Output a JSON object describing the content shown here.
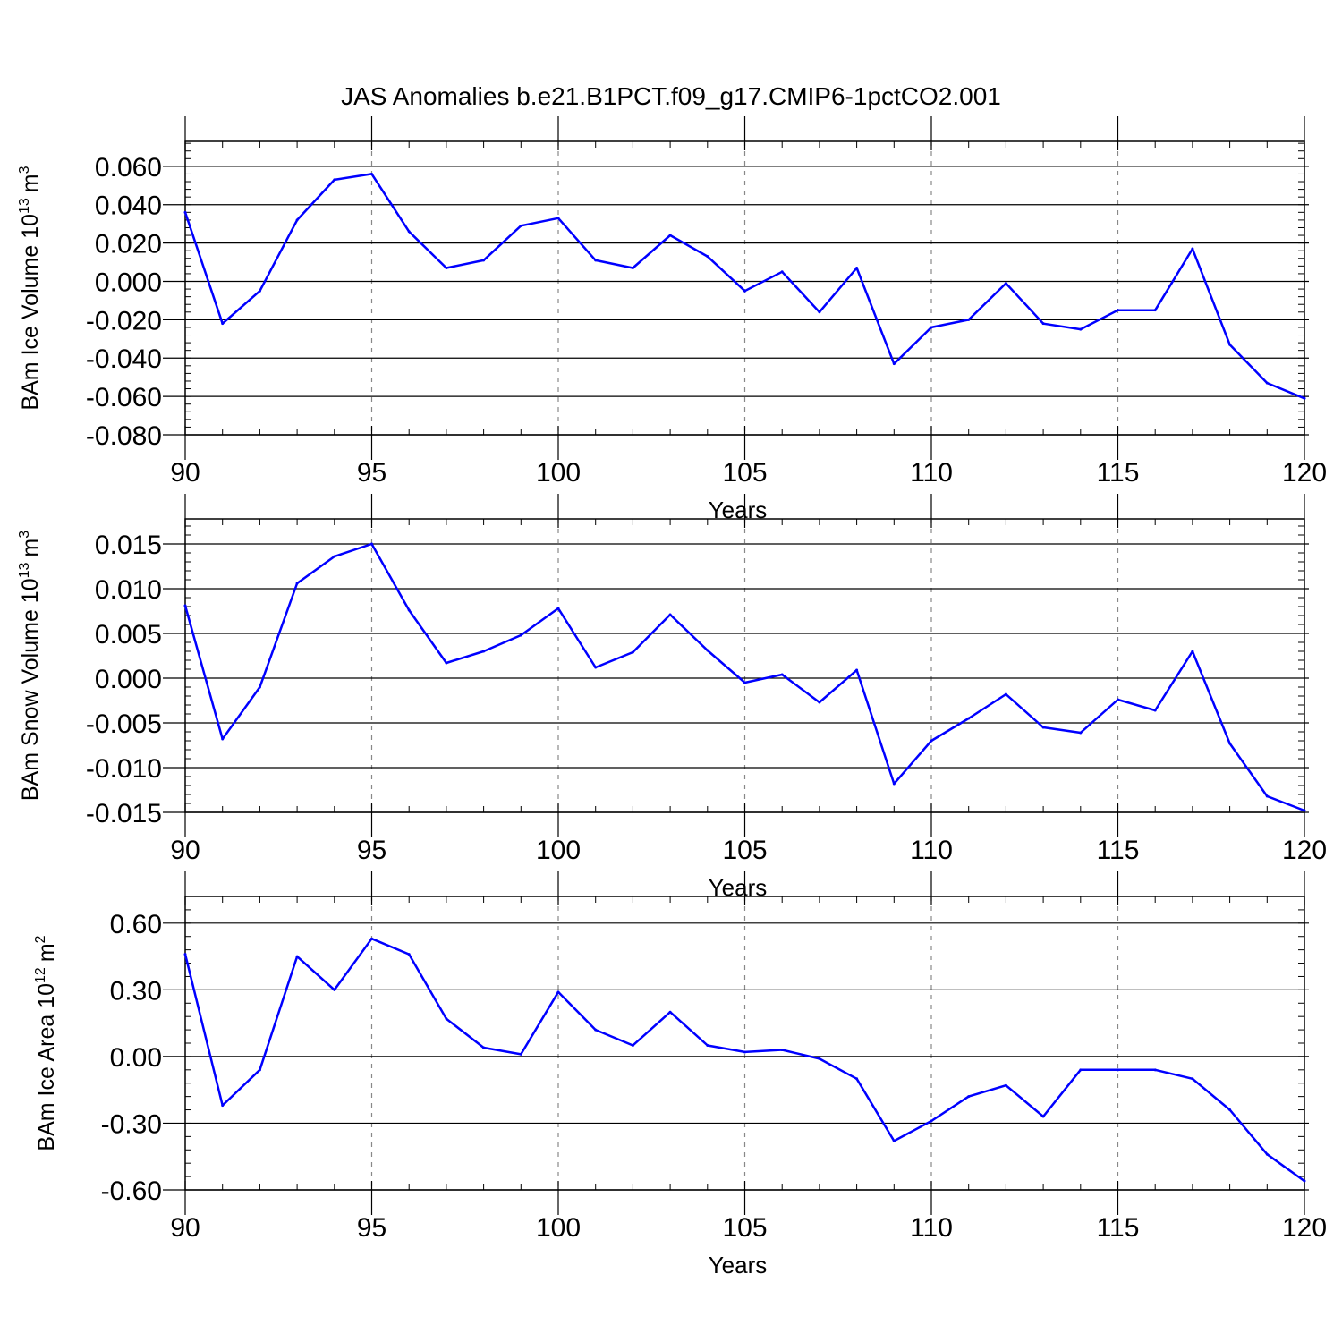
{
  "page": {
    "title": "JAS Anomalies b.e21.B1PCT.f09_g17.CMIP6-1pctCO2.001"
  },
  "colors": {
    "series_line": "#0000ff",
    "axis": "#000000",
    "gridline": "#888888"
  },
  "chart_data": [
    {
      "type": "line",
      "ylabel_main": "BAm Ice Volume 10",
      "ylabel_exp": "13",
      "ylabel_unit": "m",
      "ylabel_unit_exp": "3",
      "xlabel": "Years",
      "xlim": [
        90,
        120
      ],
      "ylim": [
        -0.08,
        0.073
      ],
      "x_ticks": [
        "90",
        "95",
        "100",
        "105",
        "110",
        "115",
        "120"
      ],
      "y_ticks": [
        "0.060",
        "0.040",
        "0.020",
        "0.000",
        "-0.020",
        "-0.040",
        "-0.060",
        "-0.080"
      ],
      "y_tick_values": [
        0.06,
        0.04,
        0.02,
        0.0,
        -0.02,
        -0.04,
        -0.06,
        -0.08
      ],
      "grid": "vertical dashed at major x ticks",
      "x": [
        90,
        91,
        92,
        93,
        94,
        95,
        96,
        97,
        98,
        99,
        100,
        101,
        102,
        103,
        104,
        105,
        106,
        107,
        108,
        109,
        110,
        111,
        112,
        113,
        114,
        115,
        116,
        117,
        118,
        119,
        120
      ],
      "values": [
        0.036,
        -0.022,
        -0.005,
        0.032,
        0.053,
        0.056,
        0.026,
        0.007,
        0.011,
        0.029,
        0.033,
        0.011,
        0.007,
        0.024,
        0.013,
        -0.005,
        0.005,
        -0.016,
        0.007,
        -0.043,
        -0.024,
        -0.02,
        -0.001,
        -0.022,
        -0.025,
        -0.015,
        -0.015,
        0.017,
        -0.033,
        -0.053,
        -0.061
      ]
    },
    {
      "type": "line",
      "ylabel_main": "BAm Snow Volume 10",
      "ylabel_exp": "13",
      "ylabel_unit": "m",
      "ylabel_unit_exp": "3",
      "xlabel": "Years",
      "xlim": [
        90,
        120
      ],
      "ylim": [
        -0.015,
        0.0178
      ],
      "x_ticks": [
        "90",
        "95",
        "100",
        "105",
        "110",
        "115",
        "120"
      ],
      "y_ticks": [
        "0.015",
        "0.010",
        "0.005",
        "0.000",
        "-0.005",
        "-0.010",
        "-0.015"
      ],
      "y_tick_values": [
        0.015,
        0.01,
        0.005,
        0.0,
        -0.005,
        -0.01,
        -0.015
      ],
      "grid": "vertical dashed at major x ticks",
      "x": [
        90,
        91,
        92,
        93,
        94,
        95,
        96,
        97,
        98,
        99,
        100,
        101,
        102,
        103,
        104,
        105,
        106,
        107,
        108,
        109,
        110,
        111,
        112,
        113,
        114,
        115,
        116,
        117,
        118,
        119,
        120
      ],
      "values": [
        0.0081,
        -0.0068,
        -0.001,
        0.0106,
        0.0136,
        0.015,
        0.0076,
        0.0017,
        0.003,
        0.0048,
        0.0078,
        0.0012,
        0.0029,
        0.0071,
        0.0031,
        -0.0005,
        0.0004,
        -0.0027,
        0.0009,
        -0.0118,
        -0.007,
        -0.0045,
        -0.0018,
        -0.0055,
        -0.0061,
        -0.0024,
        -0.0036,
        0.003,
        -0.0073,
        -0.0132,
        -0.0148
      ]
    },
    {
      "type": "line",
      "ylabel_main": "BAm Ice Area 10",
      "ylabel_exp": "12",
      "ylabel_unit": "m",
      "ylabel_unit_exp": "2",
      "xlabel": "Years",
      "xlim": [
        90,
        120
      ],
      "ylim": [
        -0.6,
        0.72
      ],
      "x_ticks": [
        "90",
        "95",
        "100",
        "105",
        "110",
        "115",
        "120"
      ],
      "y_ticks": [
        "0.60",
        "0.30",
        "0.00",
        "-0.30",
        "-0.60"
      ],
      "y_tick_values": [
        0.6,
        0.3,
        0.0,
        -0.3,
        -0.6
      ],
      "grid": "vertical dashed at major x ticks",
      "x": [
        90,
        91,
        92,
        93,
        94,
        95,
        96,
        97,
        98,
        99,
        100,
        101,
        102,
        103,
        104,
        105,
        106,
        107,
        108,
        109,
        110,
        111,
        112,
        113,
        114,
        115,
        116,
        117,
        118,
        119,
        120
      ],
      "values": [
        0.46,
        -0.22,
        -0.06,
        0.45,
        0.3,
        0.53,
        0.46,
        0.17,
        0.04,
        0.01,
        0.29,
        0.12,
        0.05,
        0.2,
        0.05,
        0.02,
        0.03,
        -0.01,
        -0.1,
        -0.38,
        -0.29,
        -0.18,
        -0.13,
        -0.27,
        -0.06,
        -0.06,
        -0.06,
        -0.1,
        -0.24,
        -0.44,
        -0.56
      ]
    }
  ]
}
